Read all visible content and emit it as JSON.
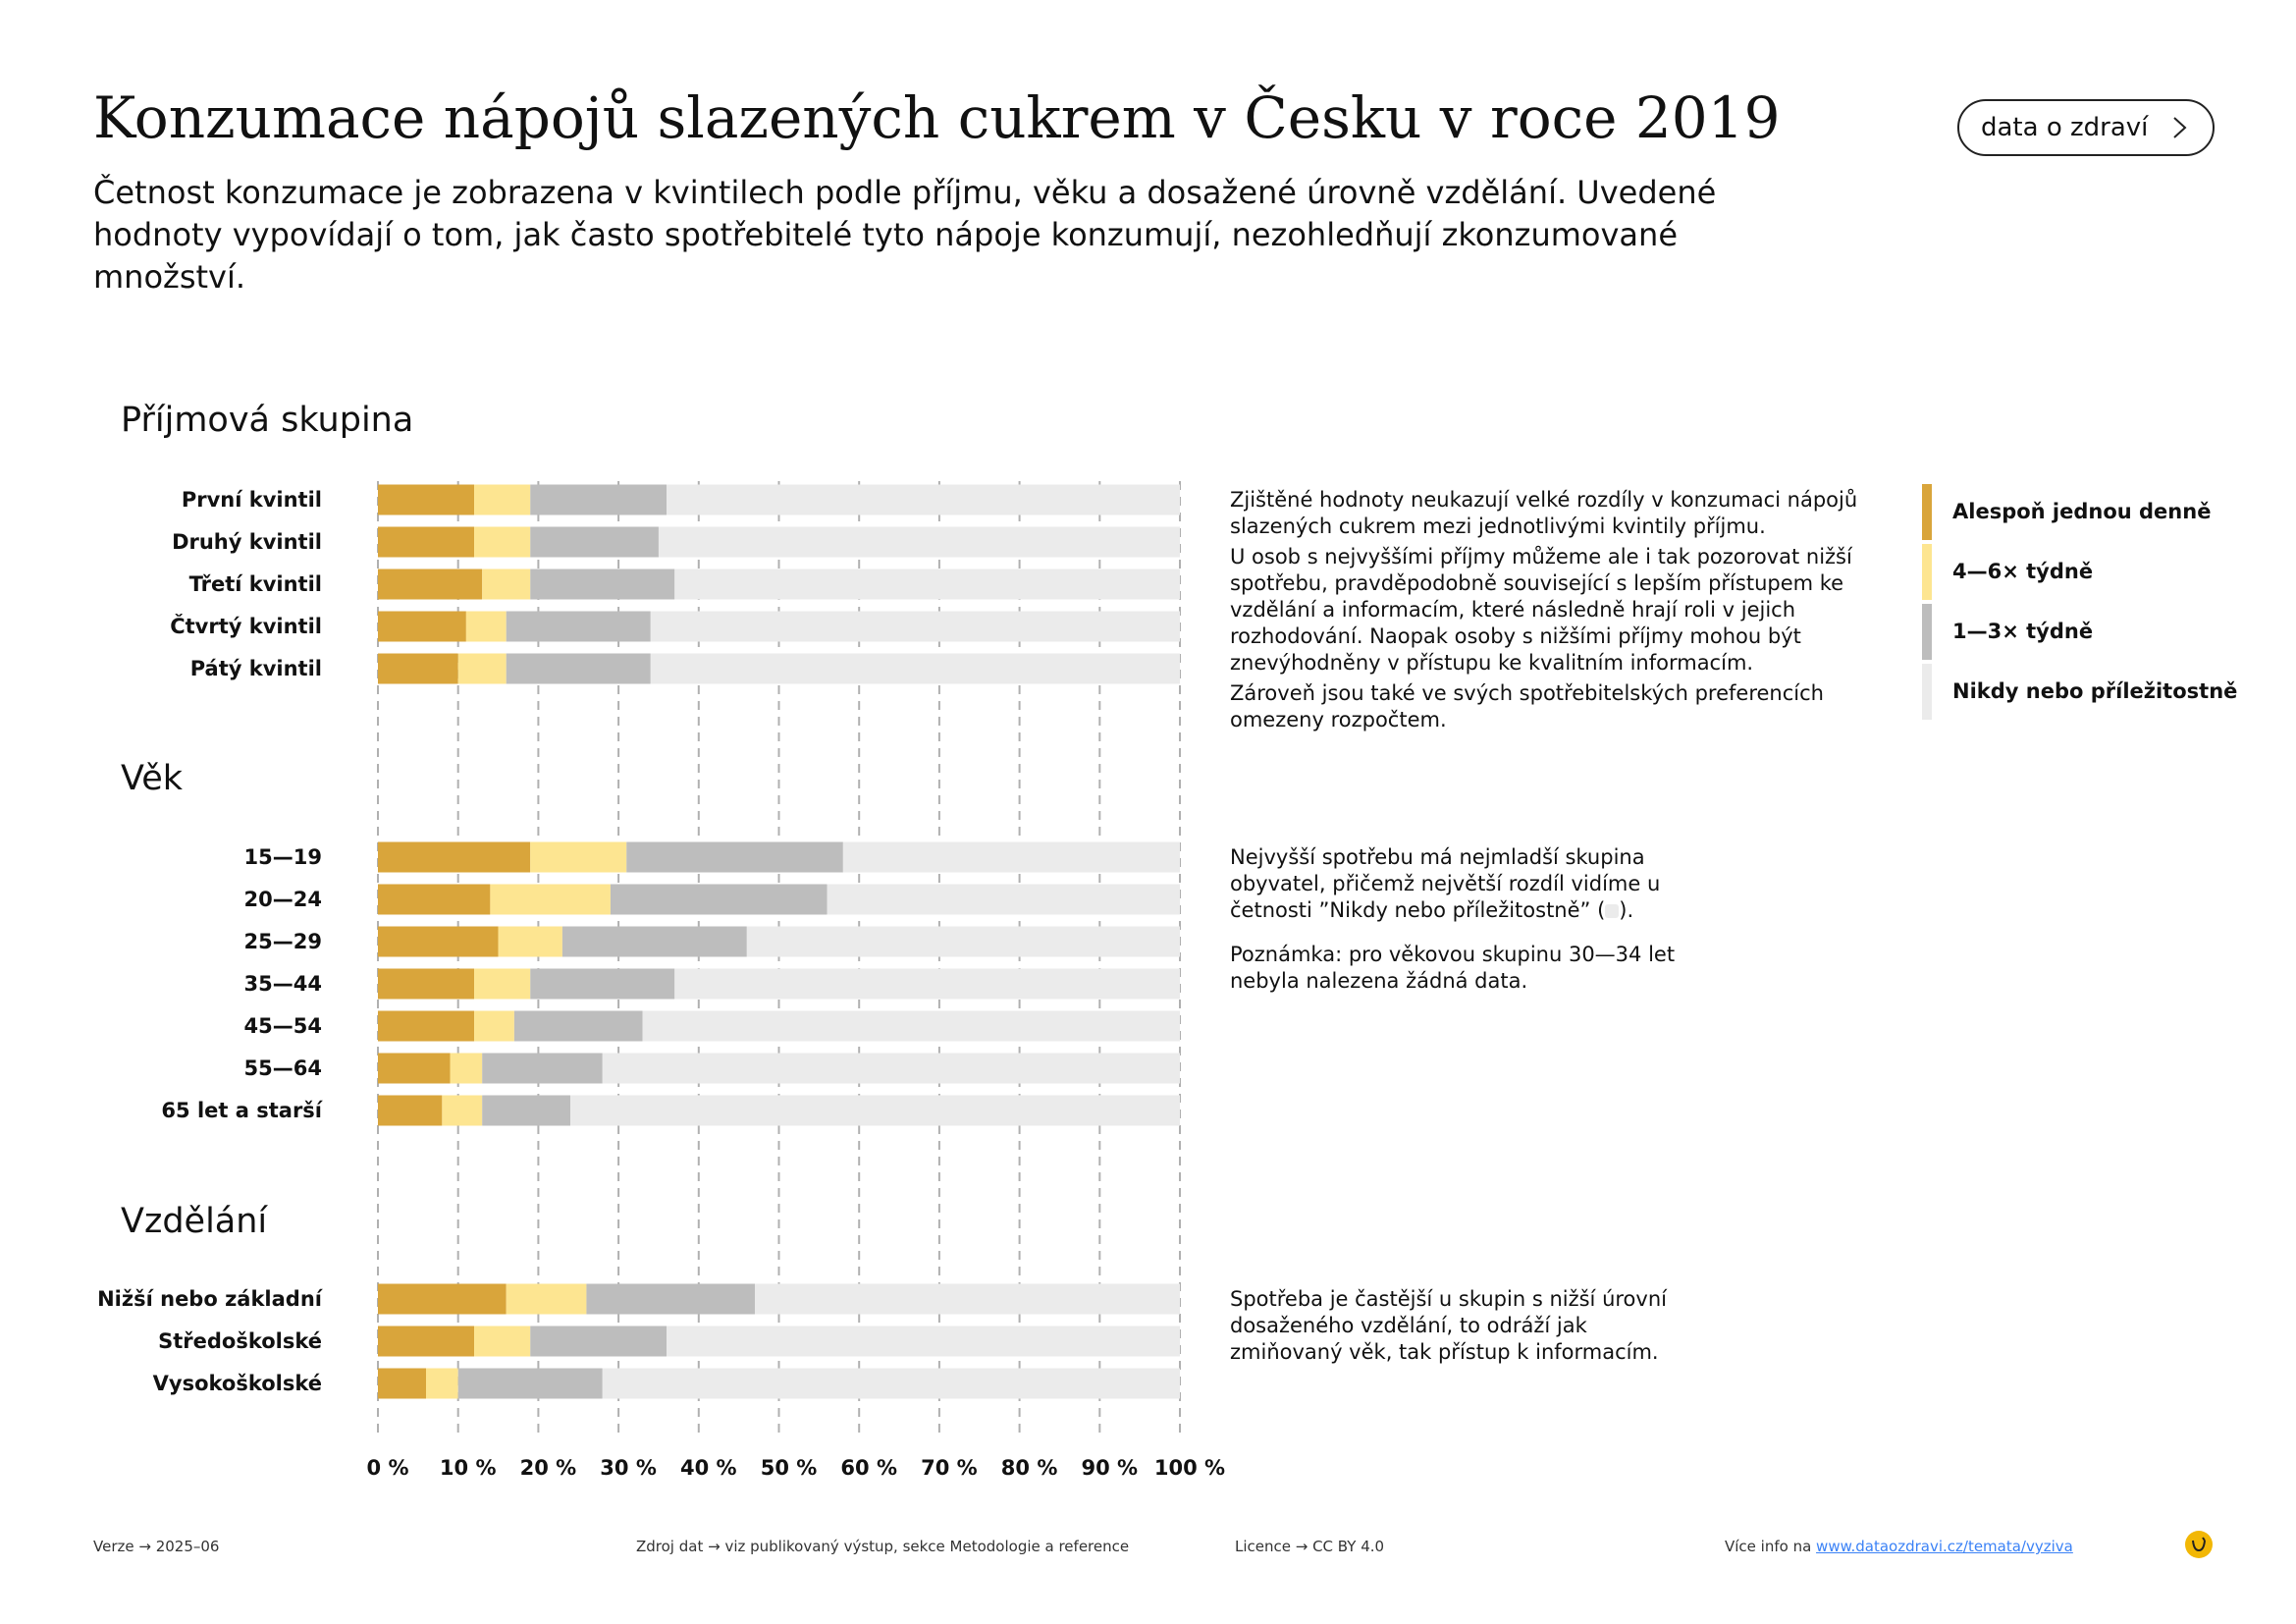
{
  "title": "Konzumace nápojů slazených cukrem v Česku v roce 2019",
  "subtitle": "Četnost konzumace je zobrazena v kvintilech podle příjmu, věku a dosažené úrovně vzdělání. Uvedené hodnoty vypovídají o tom, jak často spotřebitelé tyto nápoje konzumují, nezohledňují zkonzumované množství.",
  "nav_button": {
    "label": "data o zdraví",
    "icon": "chevron-right-icon"
  },
  "colors": {
    "daily": "#d9a53b",
    "weekly_4_6": "#fde591",
    "weekly_1_3": "#bdbdbd",
    "never": "#ebebeb",
    "accent": "#f2b705",
    "grid": "#b0b0b0"
  },
  "chart_data": {
    "type": "bar",
    "orientation": "horizontal",
    "stacked": true,
    "xlim": [
      0,
      100
    ],
    "x_ticks": [
      "0 %",
      "10 %",
      "20 %",
      "30 %",
      "40 %",
      "50 %",
      "60 %",
      "70 %",
      "80 %",
      "90 %",
      "100 %"
    ],
    "grid": true,
    "legend_position": "right",
    "series_names": [
      "Alespoň jednou denně",
      "4—6× týdně",
      "1—3× týdně",
      "Nikdy nebo příležitostně"
    ],
    "groups": [
      {
        "title": "Příjmová skupina",
        "categories": [
          "První kvintil",
          "Druhý kvintil",
          "Třetí kvintil",
          "Čtvrtý kvintil",
          "Pátý kvintil"
        ],
        "series": [
          {
            "name": "Alespoň jednou denně",
            "values": [
              12,
              12,
              13,
              11,
              10
            ]
          },
          {
            "name": "4—6× týdně",
            "values": [
              7,
              7,
              6,
              5,
              6
            ]
          },
          {
            "name": "1—3× týdně",
            "values": [
              17,
              16,
              18,
              18,
              18
            ]
          },
          {
            "name": "Nikdy nebo příležitostně",
            "values": [
              64,
              65,
              63,
              66,
              66
            ]
          }
        ]
      },
      {
        "title": "Věk",
        "categories": [
          "15—19",
          "20—24",
          "25—29",
          "35—44",
          "45—54",
          "55—64",
          "65 let a starší"
        ],
        "series": [
          {
            "name": "Alespoň jednou denně",
            "values": [
              19,
              14,
              15,
              12,
              12,
              9,
              8
            ]
          },
          {
            "name": "4—6× týdně",
            "values": [
              12,
              15,
              8,
              7,
              5,
              4,
              5
            ]
          },
          {
            "name": "1—3× týdně",
            "values": [
              27,
              27,
              23,
              18,
              16,
              15,
              11
            ]
          },
          {
            "name": "Nikdy nebo příležitostně",
            "values": [
              42,
              44,
              54,
              63,
              67,
              72,
              76
            ]
          }
        ]
      },
      {
        "title": "Vzdělání",
        "categories": [
          "Nižší nebo základní",
          "Středoškolské",
          "Vysokoškolské"
        ],
        "series": [
          {
            "name": "Alespoň jednou denně",
            "values": [
              16,
              12,
              6
            ]
          },
          {
            "name": "4—6× týdně",
            "values": [
              10,
              7,
              4
            ]
          },
          {
            "name": "1—3× týdně",
            "values": [
              21,
              17,
              18
            ]
          },
          {
            "name": "Nikdy nebo příležitostně",
            "values": [
              53,
              64,
              72
            ]
          }
        ]
      }
    ]
  },
  "notes": {
    "income": [
      "Zjištěné hodnoty neukazují velké rozdíly v konzumaci nápojů slazených cukrem mezi jednotlivými kvintily příjmu.",
      "U osob s nejvyššími příjmy můžeme ale i tak pozorovat nižší spotřebu, pravděpodobně související s lepším přístupem ke vzdělání a informacím, které následně hrají roli v jejich rozhodování. Naopak osoby s nižšími příjmy mohou být znevýhodněny v přístupu ke kvalitním informacím.",
      "Zároveň jsou také ve svých spotřebitelských preferencích omezeny rozpočtem."
    ],
    "age_1_pre": "Nejvyšší spotřebu má nejmladší skupina obyvatel, přičemž největší rozdíl vidíme u četnosti ”Nikdy nebo příležitostně” (",
    "age_1_post": ").",
    "age_2": "Poznámka: pro věkovou skupinu 30—34 let nebyla nalezena žádná data.",
    "education": "Spotřeba je častější u skupin s nižší úrovní dosaženého vzdělání, to odráží jak zmiňovaný věk, tak přístup k informacím."
  },
  "footer": {
    "version": "Verze  →  2025–06",
    "source": "Zdroj dat  →  viz publikovaný výstup, sekce Metodologie a reference",
    "license": "Licence  →  CC BY 4.0",
    "more_prefix": "Více info na ",
    "more_link": "www.dataozdravi.cz/temata/vyziva",
    "logo_icon": "logo-icon"
  }
}
